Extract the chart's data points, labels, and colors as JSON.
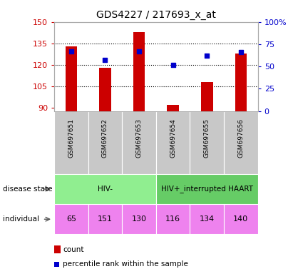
{
  "title": "GDS4227 / 217693_x_at",
  "samples": [
    "GSM697651",
    "GSM697652",
    "GSM697653",
    "GSM697654",
    "GSM697655",
    "GSM697656"
  ],
  "counts": [
    133,
    118,
    143,
    92,
    108,
    128
  ],
  "percentile_ranks": [
    67,
    57,
    67,
    52,
    62,
    66
  ],
  "y_min": 88,
  "y_max": 150,
  "y_ticks_left": [
    90,
    105,
    120,
    135,
    150
  ],
  "y_ticks_right_vals": [
    0,
    25,
    50,
    75,
    100
  ],
  "y_ticks_right_labels": [
    "0",
    "25",
    "50",
    "75",
    "100%"
  ],
  "dotted_lines": [
    105,
    120,
    135
  ],
  "disease_state_groups": [
    {
      "label": "HIV-",
      "start": 0,
      "end": 3,
      "color": "#90ee90"
    },
    {
      "label": "HIV+_interrupted HAART",
      "start": 3,
      "end": 6,
      "color": "#66cc66"
    }
  ],
  "individuals": [
    "65",
    "151",
    "130",
    "116",
    "134",
    "140"
  ],
  "individual_color": "#ee82ee",
  "bar_color": "#cc0000",
  "scatter_color": "#0000cc",
  "bar_width": 0.35,
  "bar_base": 88,
  "legend_count_label": "count",
  "legend_percentile_label": "percentile rank within the sample",
  "sample_tick_bg": "#c8c8c8",
  "left_label_color": "#cc0000",
  "right_label_color": "#0000cc"
}
